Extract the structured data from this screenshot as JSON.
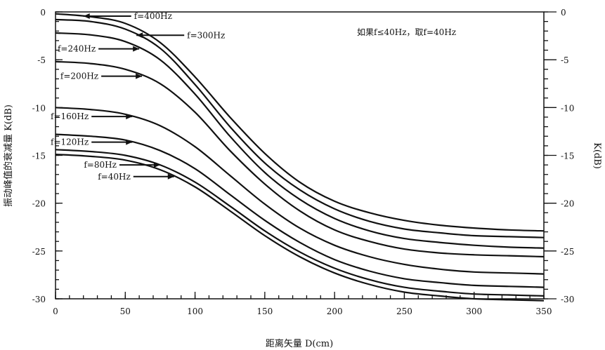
{
  "chart_data": {
    "type": "line",
    "xlabel": "距离矢量 D(cm)",
    "ylabel_left": "振动峰值的衰减量 K(dB)",
    "ylabel_right": "K(dB)",
    "annotation": "如果f≤40Hz，取f=40Hz",
    "xlim": [
      0,
      350
    ],
    "ylim": [
      -30,
      0
    ],
    "x_ticks": [
      0,
      50,
      100,
      150,
      200,
      250,
      300,
      350
    ],
    "y_ticks_left": [
      0,
      -5,
      -10,
      -15,
      -20,
      -25,
      -30
    ],
    "y_ticks_right": [
      0,
      -5,
      -10,
      -15,
      -20,
      -25,
      -30
    ],
    "x": [
      0,
      25,
      50,
      75,
      100,
      125,
      150,
      175,
      200,
      225,
      250,
      275,
      300,
      325,
      350
    ],
    "series": [
      {
        "name": "f=400Hz",
        "label_x": 20,
        "values": [
          -0.2,
          -0.5,
          -1.2,
          -3.2,
          -6.8,
          -11.0,
          -14.8,
          -17.8,
          -19.8,
          -21.0,
          -21.8,
          -22.3,
          -22.6,
          -22.8,
          -22.9
        ]
      },
      {
        "name": "f=300Hz",
        "label_x": 58,
        "values": [
          -0.8,
          -1.0,
          -1.8,
          -3.8,
          -7.6,
          -12.0,
          -15.8,
          -18.6,
          -20.6,
          -21.9,
          -22.7,
          -23.1,
          -23.4,
          -23.5,
          -23.6
        ]
      },
      {
        "name": "f=240Hz",
        "label_x": 60,
        "values": [
          -2.2,
          -2.4,
          -3.1,
          -5.0,
          -8.6,
          -13.0,
          -16.8,
          -19.6,
          -21.6,
          -22.9,
          -23.7,
          -24.1,
          -24.4,
          -24.6,
          -24.7
        ]
      },
      {
        "name": "f=200Hz",
        "label_x": 62,
        "values": [
          -5.2,
          -5.4,
          -6.0,
          -7.5,
          -10.5,
          -14.5,
          -18.0,
          -20.8,
          -22.8,
          -24.0,
          -24.8,
          -25.2,
          -25.4,
          -25.5,
          -25.6
        ]
      },
      {
        "name": "f=160Hz",
        "label_x": 55,
        "values": [
          -10.0,
          -10.2,
          -10.7,
          -11.9,
          -14.1,
          -17.1,
          -20.1,
          -22.6,
          -24.4,
          -25.6,
          -26.4,
          -26.9,
          -27.2,
          -27.3,
          -27.4
        ]
      },
      {
        "name": "f=120Hz",
        "label_x": 55,
        "values": [
          -12.8,
          -13.0,
          -13.4,
          -14.5,
          -16.4,
          -19.1,
          -21.8,
          -24.1,
          -25.9,
          -27.1,
          -27.9,
          -28.3,
          -28.6,
          -28.7,
          -28.8
        ]
      },
      {
        "name": "f=80Hz",
        "label_x": 75,
        "values": [
          -14.4,
          -14.6,
          -15.0,
          -16.0,
          -17.8,
          -20.3,
          -22.9,
          -25.1,
          -26.8,
          -28.0,
          -28.8,
          -29.2,
          -29.5,
          -29.6,
          -29.7
        ]
      },
      {
        "name": "f=40Hz",
        "label_x": 85,
        "values": [
          -14.9,
          -15.1,
          -15.5,
          -16.5,
          -18.3,
          -20.8,
          -23.4,
          -25.6,
          -27.3,
          -28.5,
          -29.3,
          -29.7,
          -30.0,
          -30.1,
          -30.2
        ]
      }
    ]
  }
}
